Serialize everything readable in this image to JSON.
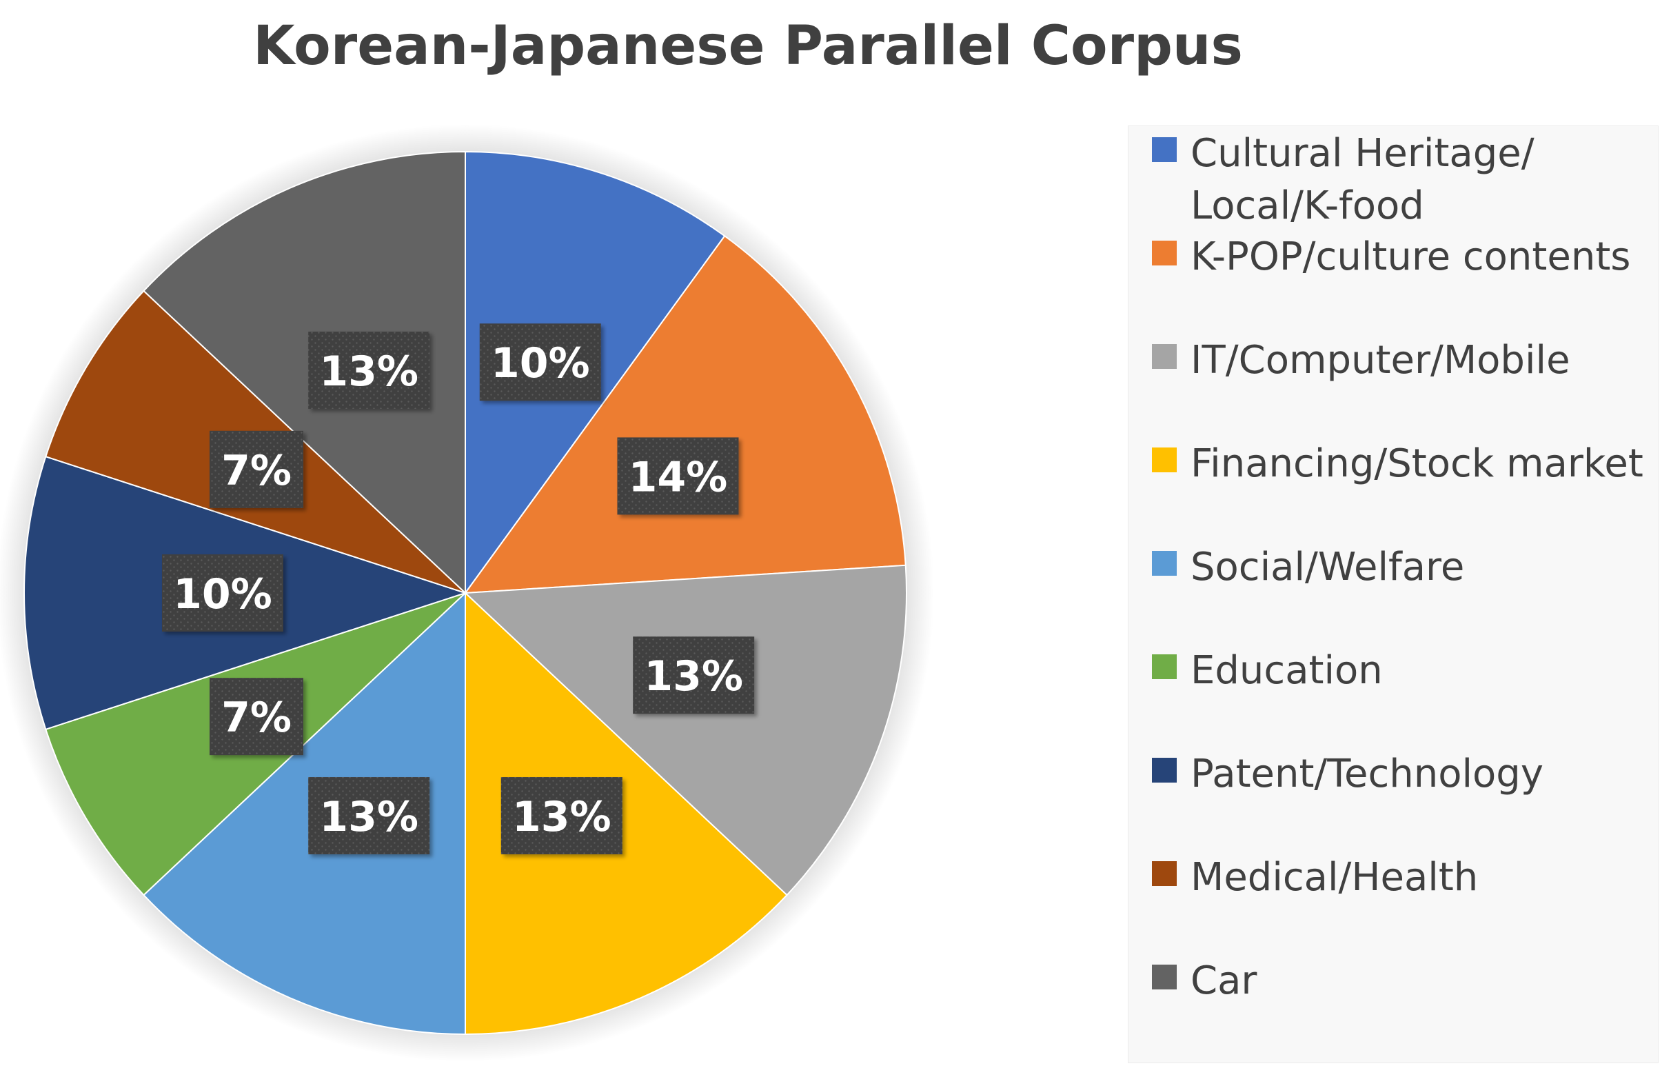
{
  "chart_data": {
    "type": "pie",
    "title": "Korean-Japanese Parallel Corpus",
    "start_angle_deg": 0,
    "direction": "clockwise",
    "legend_position": "right",
    "slices": [
      {
        "label": "Cultural Heritage/ Local/K-food",
        "value": 10,
        "display": "10%",
        "color": "#4472C4"
      },
      {
        "label": "K-POP/culture contents",
        "value": 14,
        "display": "14%",
        "color": "#ED7D31"
      },
      {
        "label": "IT/Computer/Mobile",
        "value": 13,
        "display": "13%",
        "color": "#A5A5A5"
      },
      {
        "label": "Financing/Stock market",
        "value": 13,
        "display": "13%",
        "color": "#FFC000"
      },
      {
        "label": "Social/Welfare",
        "value": 13,
        "display": "13%",
        "color": "#5B9BD5"
      },
      {
        "label": "Education",
        "value": 7,
        "display": "7%",
        "color": "#70AD47"
      },
      {
        "label": "Patent/Technology",
        "value": 10,
        "display": "10%",
        "color": "#264478"
      },
      {
        "label": "Medical/Health",
        "value": 7,
        "display": "7%",
        "color": "#9E480E"
      },
      {
        "label": "Car",
        "value": 13,
        "display": "13%",
        "color": "#636363"
      }
    ]
  }
}
